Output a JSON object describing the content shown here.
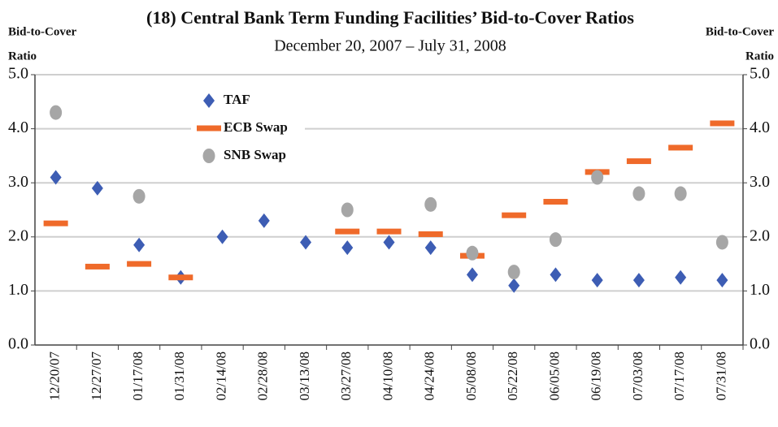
{
  "chart_data": {
    "type": "scatter",
    "title": "(18) Central Bank Term Funding Facilities’ Bid-to-Cover Ratios",
    "subtitle": "December 20, 2007 – July 31, 2008",
    "ylabel": [
      "Bid-to-Cover",
      "Ratio"
    ],
    "y2label": [
      "Bid-to-Cover",
      "Ratio"
    ],
    "categories": [
      "12/20/07",
      "12/27/07",
      "01/17/08",
      "01/31/08",
      "02/14/08",
      "02/28/08",
      "03/13/08",
      "03/27/08",
      "04/10/08",
      "04/24/08",
      "05/08/08",
      "05/22/08",
      "06/05/08",
      "06/19/08",
      "07/03/08",
      "07/17/08",
      "07/31/08"
    ],
    "series": [
      {
        "name": "TAF",
        "color": "#3d5db4",
        "marker": "diamond",
        "values": [
          3.1,
          2.9,
          1.85,
          1.25,
          2.0,
          2.3,
          1.9,
          1.8,
          1.9,
          1.8,
          1.3,
          1.1,
          1.3,
          1.2,
          1.2,
          1.25,
          1.2
        ]
      },
      {
        "name": "ECB Swap",
        "color": "#ef6a2a",
        "marker": "dash",
        "values": [
          2.25,
          1.45,
          1.5,
          1.25,
          null,
          null,
          null,
          2.1,
          2.1,
          2.05,
          1.65,
          2.4,
          2.65,
          3.2,
          3.4,
          3.65,
          4.1
        ]
      },
      {
        "name": "SNB Swap",
        "color": "#a6a6a6",
        "marker": "circle",
        "values": [
          4.3,
          null,
          2.75,
          null,
          null,
          null,
          null,
          2.5,
          null,
          2.6,
          1.7,
          1.35,
          1.95,
          3.1,
          2.8,
          2.8,
          1.9
        ]
      }
    ],
    "ylim": [
      0,
      5
    ],
    "yticks": [
      {
        "value": 0,
        "label": "0.0"
      },
      {
        "value": 1,
        "label": "1.0"
      },
      {
        "value": 2,
        "label": "2.0"
      },
      {
        "value": 3,
        "label": "3.0"
      },
      {
        "value": 4,
        "label": "4.0"
      },
      {
        "value": 5,
        "label": "5.0"
      }
    ],
    "y2lim": [
      0,
      5
    ],
    "y2ticks": [
      {
        "value": 0,
        "label": "0.0"
      },
      {
        "value": 1,
        "label": "1.0"
      },
      {
        "value": 2,
        "label": "2.0"
      },
      {
        "value": 3,
        "label": "3.0"
      },
      {
        "value": 4,
        "label": "4.0"
      },
      {
        "value": 5,
        "label": "5.0"
      }
    ],
    "grid": true,
    "legend": "upper-left"
  }
}
